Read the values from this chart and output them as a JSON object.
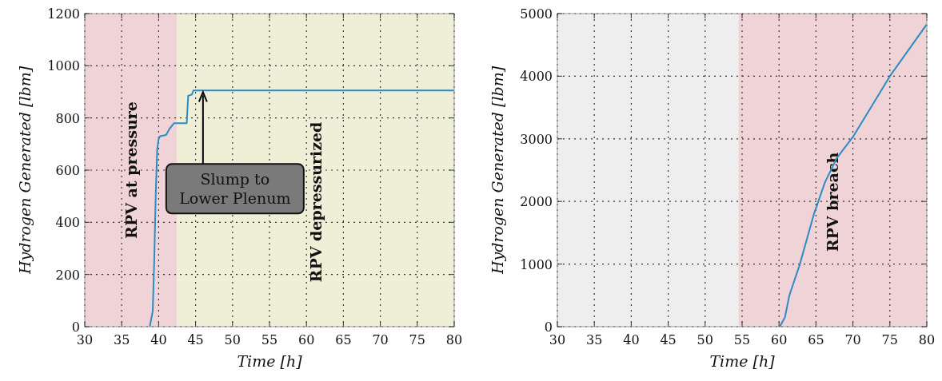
{
  "chart_data": [
    {
      "type": "line",
      "xlabel": "Time [h]",
      "ylabel": "Hydrogen Generated [lbm]",
      "xlim": [
        30,
        80
      ],
      "ylim": [
        0,
        1200
      ],
      "xticks": [
        30,
        35,
        40,
        45,
        50,
        55,
        60,
        65,
        70,
        75,
        80
      ],
      "yticks": [
        0,
        200,
        400,
        600,
        800,
        1000,
        1200
      ],
      "grid": true,
      "series": [
        {
          "color": "#2b8cc4",
          "x": [
            38.8,
            39.2,
            39.4,
            39.6,
            39.8,
            40.0,
            40.2,
            41.0,
            41.5,
            42.1,
            43.8,
            44.0,
            44.5,
            44.7,
            80
          ],
          "values": [
            0,
            60,
            250,
            500,
            680,
            720,
            730,
            735,
            760,
            780,
            780,
            885,
            890,
            905,
            905
          ]
        }
      ],
      "bands": [
        {
          "axis": "x",
          "from": 30,
          "to": 42.5,
          "label": "RPV at pressure",
          "color": "#efd3d6"
        },
        {
          "axis": "x",
          "from": 42.5,
          "to": 80,
          "label": "RPV depressurized",
          "color": "#efefd8"
        }
      ],
      "annotations": [
        {
          "text": "Slump to\nLower Plenum",
          "x": 46,
          "y": 905
        }
      ]
    },
    {
      "type": "line",
      "xlabel": "Time [h]",
      "ylabel": "Hydrogen Generated [lbm]",
      "xlim": [
        30,
        80
      ],
      "ylim": [
        0,
        5000
      ],
      "xticks": [
        30,
        35,
        40,
        45,
        50,
        55,
        60,
        65,
        70,
        75,
        80
      ],
      "yticks": [
        0,
        1000,
        2000,
        3000,
        4000,
        5000
      ],
      "grid": true,
      "series": [
        {
          "color": "#2b8cc4",
          "x": [
            60.1,
            60.8,
            61.4,
            62.8,
            64.7,
            66.2,
            67.8,
            70,
            75,
            80
          ],
          "values": [
            0,
            150,
            500,
            990,
            1790,
            2300,
            2690,
            3030,
            4000,
            4830
          ]
        }
      ],
      "bands": [
        {
          "axis": "x",
          "from": 30,
          "to": 54.5,
          "label": null,
          "color": "#eeeeee"
        },
        {
          "axis": "x",
          "from": 54.5,
          "to": 80,
          "label": "RPV breach",
          "color": "#efd3d6"
        }
      ]
    }
  ]
}
